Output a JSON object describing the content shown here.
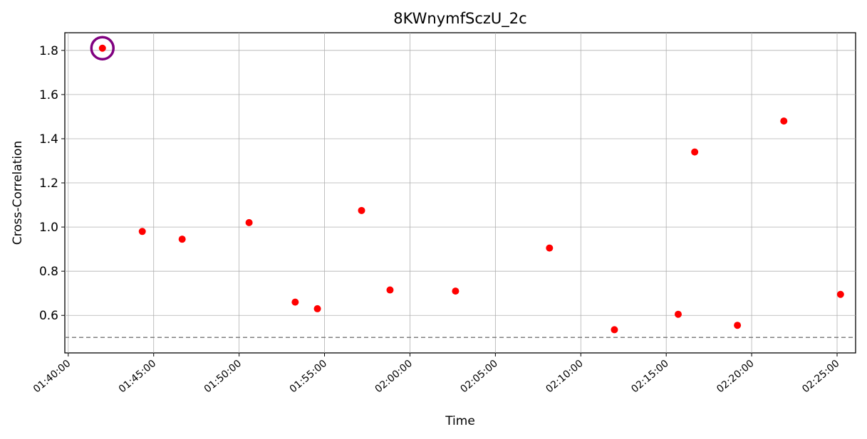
{
  "chart_data": {
    "type": "scatter",
    "title": "8KWnymfSczU_2c",
    "xlabel": "Time",
    "ylabel": "Cross-Correlation",
    "x_ticks": [
      "01:40:00",
      "01:45:00",
      "01:50:00",
      "01:55:00",
      "02:00:00",
      "02:05:00",
      "02:10:00",
      "02:15:00",
      "02:20:00",
      "02:25:00"
    ],
    "y_ticks": [
      "0.6",
      "0.8",
      "1.0",
      "1.2",
      "1.4",
      "1.6",
      "1.8"
    ],
    "xlim": [
      "01:39:48",
      "02:26:05"
    ],
    "ylim": [
      0.43,
      1.88
    ],
    "threshold": 0.5,
    "grid": true,
    "point_color": "#ff0000",
    "highlight_color": "#800080",
    "threshold_color": "#808080",
    "points": [
      {
        "x": "01:42:00",
        "y": 1.81,
        "highlighted": true
      },
      {
        "x": "01:44:20",
        "y": 0.98
      },
      {
        "x": "01:46:40",
        "y": 0.945
      },
      {
        "x": "01:50:35",
        "y": 1.02
      },
      {
        "x": "01:53:17",
        "y": 0.66
      },
      {
        "x": "01:54:35",
        "y": 0.63
      },
      {
        "x": "01:57:10",
        "y": 1.075
      },
      {
        "x": "01:58:50",
        "y": 0.715
      },
      {
        "x": "02:02:40",
        "y": 0.71
      },
      {
        "x": "02:08:10",
        "y": 0.905
      },
      {
        "x": "02:11:58",
        "y": 0.535
      },
      {
        "x": "02:15:42",
        "y": 0.605
      },
      {
        "x": "02:16:40",
        "y": 1.34
      },
      {
        "x": "02:19:10",
        "y": 0.555
      },
      {
        "x": "02:21:53",
        "y": 1.48
      },
      {
        "x": "02:25:12",
        "y": 0.695
      }
    ]
  }
}
